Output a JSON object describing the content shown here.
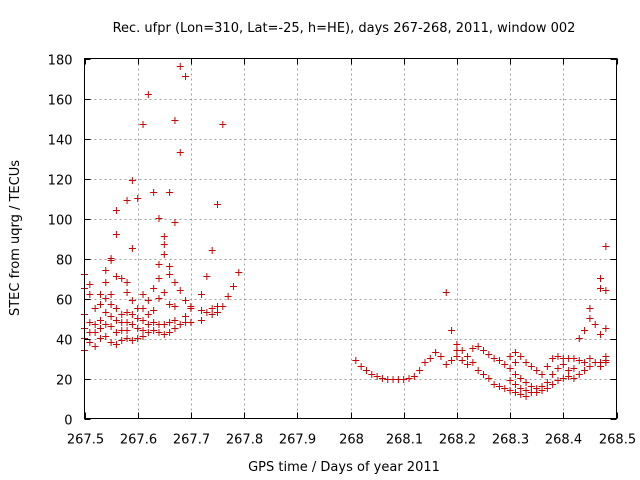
{
  "chart_data": {
    "type": "scatter",
    "title": "Rec. ufpr (Lon=310, Lat=-25, h=HE), days 267-268, 2011, window 002",
    "xlabel": "GPS time / Days of year 2011",
    "ylabel": "STEC from uqrg / TECUs",
    "xlim": [
      267.5,
      268.5
    ],
    "ylim": [
      0,
      180
    ],
    "grid": true,
    "marker": "+",
    "color": "#cc0000",
    "xticks": [
      "267.5",
      "267.6",
      "267.7",
      "267.8",
      "267.9",
      "268",
      "268.1",
      "268.2",
      "268.3",
      "268.4",
      "268.5"
    ],
    "yticks": [
      "0",
      "20",
      "40",
      "60",
      "80",
      "100",
      "120",
      "140",
      "160",
      "180"
    ],
    "points": [
      [
        267.5,
        72
      ],
      [
        267.5,
        65
      ],
      [
        267.5,
        52
      ],
      [
        267.5,
        45
      ],
      [
        267.5,
        40
      ],
      [
        267.5,
        34
      ],
      [
        267.51,
        67
      ],
      [
        267.51,
        62
      ],
      [
        267.51,
        48
      ],
      [
        267.51,
        43
      ],
      [
        267.51,
        38
      ],
      [
        267.52,
        55
      ],
      [
        267.52,
        47
      ],
      [
        267.52,
        43
      ],
      [
        267.52,
        36
      ],
      [
        267.53,
        62
      ],
      [
        267.53,
        57
      ],
      [
        267.53,
        49
      ],
      [
        267.53,
        45
      ],
      [
        267.53,
        40
      ],
      [
        267.54,
        74
      ],
      [
        267.54,
        68
      ],
      [
        267.54,
        60
      ],
      [
        267.54,
        53
      ],
      [
        267.54,
        47
      ],
      [
        267.54,
        41
      ],
      [
        267.55,
        80
      ],
      [
        267.55,
        79
      ],
      [
        267.55,
        62
      ],
      [
        267.55,
        57
      ],
      [
        267.55,
        51
      ],
      [
        267.55,
        46
      ],
      [
        267.55,
        38
      ],
      [
        267.56,
        104
      ],
      [
        267.56,
        92
      ],
      [
        267.56,
        71
      ],
      [
        267.56,
        55
      ],
      [
        267.56,
        49
      ],
      [
        267.56,
        43
      ],
      [
        267.56,
        37
      ],
      [
        267.57,
        70
      ],
      [
        267.57,
        52
      ],
      [
        267.57,
        48
      ],
      [
        267.57,
        44
      ],
      [
        267.57,
        39
      ],
      [
        267.58,
        109
      ],
      [
        267.58,
        68
      ],
      [
        267.58,
        63
      ],
      [
        267.58,
        53
      ],
      [
        267.58,
        48
      ],
      [
        267.58,
        44
      ],
      [
        267.58,
        40
      ],
      [
        267.59,
        119
      ],
      [
        267.59,
        85
      ],
      [
        267.59,
        59
      ],
      [
        267.59,
        52
      ],
      [
        267.59,
        47
      ],
      [
        267.59,
        39
      ],
      [
        267.6,
        110
      ],
      [
        267.6,
        55
      ],
      [
        267.6,
        50
      ],
      [
        267.6,
        45
      ],
      [
        267.6,
        40
      ],
      [
        267.61,
        147
      ],
      [
        267.61,
        62
      ],
      [
        267.61,
        55
      ],
      [
        267.61,
        49
      ],
      [
        267.61,
        44
      ],
      [
        267.61,
        41
      ],
      [
        267.62,
        162
      ],
      [
        267.62,
        59
      ],
      [
        267.62,
        52
      ],
      [
        267.62,
        47
      ],
      [
        267.62,
        43
      ],
      [
        267.63,
        113
      ],
      [
        267.63,
        65
      ],
      [
        267.63,
        54
      ],
      [
        267.63,
        48
      ],
      [
        267.63,
        44
      ],
      [
        267.64,
        100
      ],
      [
        267.64,
        77
      ],
      [
        267.64,
        70
      ],
      [
        267.64,
        60
      ],
      [
        267.64,
        47
      ],
      [
        267.64,
        43
      ],
      [
        267.65,
        91
      ],
      [
        267.65,
        87
      ],
      [
        267.65,
        82
      ],
      [
        267.65,
        63
      ],
      [
        267.65,
        47
      ],
      [
        267.65,
        42
      ],
      [
        267.66,
        113
      ],
      [
        267.66,
        76
      ],
      [
        267.66,
        72
      ],
      [
        267.66,
        57
      ],
      [
        267.66,
        48
      ],
      [
        267.66,
        43
      ],
      [
        267.67,
        149
      ],
      [
        267.67,
        98
      ],
      [
        267.67,
        68
      ],
      [
        267.67,
        56
      ],
      [
        267.67,
        49
      ],
      [
        267.67,
        45
      ],
      [
        267.68,
        176
      ],
      [
        267.68,
        133
      ],
      [
        267.68,
        64
      ],
      [
        267.68,
        47
      ],
      [
        267.69,
        171
      ],
      [
        267.69,
        59
      ],
      [
        267.69,
        51
      ],
      [
        267.69,
        48
      ],
      [
        267.7,
        56
      ],
      [
        267.7,
        55
      ],
      [
        267.7,
        48
      ],
      [
        267.72,
        62
      ],
      [
        267.72,
        54
      ],
      [
        267.72,
        49
      ],
      [
        267.73,
        71
      ],
      [
        267.73,
        53
      ],
      [
        267.74,
        84
      ],
      [
        267.74,
        55
      ],
      [
        267.74,
        52
      ],
      [
        267.75,
        107
      ],
      [
        267.75,
        56
      ],
      [
        267.75,
        53
      ],
      [
        267.76,
        147
      ],
      [
        267.76,
        56
      ],
      [
        267.77,
        61
      ],
      [
        267.78,
        66
      ],
      [
        267.79,
        73
      ],
      [
        268.01,
        29
      ],
      [
        268.02,
        26
      ],
      [
        268.03,
        24
      ],
      [
        268.04,
        22
      ],
      [
        268.05,
        21
      ],
      [
        268.06,
        20
      ],
      [
        268.07,
        19.5
      ],
      [
        268.08,
        19.5
      ],
      [
        268.09,
        19.5
      ],
      [
        268.1,
        19.5
      ],
      [
        268.11,
        20
      ],
      [
        268.12,
        21
      ],
      [
        268.13,
        24
      ],
      [
        268.14,
        28
      ],
      [
        268.15,
        30
      ],
      [
        268.16,
        33
      ],
      [
        268.17,
        31
      ],
      [
        268.18,
        63
      ],
      [
        268.18,
        27
      ],
      [
        268.19,
        44
      ],
      [
        268.19,
        29
      ],
      [
        268.2,
        37
      ],
      [
        268.2,
        34
      ],
      [
        268.2,
        31
      ],
      [
        268.21,
        34
      ],
      [
        268.21,
        29
      ],
      [
        268.22,
        31
      ],
      [
        268.22,
        27
      ],
      [
        268.23,
        35
      ],
      [
        268.23,
        28
      ],
      [
        268.24,
        36
      ],
      [
        268.24,
        24
      ],
      [
        268.25,
        34
      ],
      [
        268.25,
        22
      ],
      [
        268.26,
        32
      ],
      [
        268.26,
        20
      ],
      [
        268.27,
        30
      ],
      [
        268.27,
        17
      ],
      [
        268.28,
        29
      ],
      [
        268.28,
        16
      ],
      [
        268.29,
        27
      ],
      [
        268.29,
        15
      ],
      [
        268.3,
        31
      ],
      [
        268.3,
        25
      ],
      [
        268.3,
        19
      ],
      [
        268.3,
        14
      ],
      [
        268.31,
        33
      ],
      [
        268.31,
        28
      ],
      [
        268.31,
        22
      ],
      [
        268.31,
        17
      ],
      [
        268.31,
        13
      ],
      [
        268.32,
        31
      ],
      [
        268.32,
        20
      ],
      [
        268.32,
        15
      ],
      [
        268.32,
        12
      ],
      [
        268.33,
        28
      ],
      [
        268.33,
        18
      ],
      [
        268.33,
        14
      ],
      [
        268.33,
        11
      ],
      [
        268.34,
        26
      ],
      [
        268.34,
        16
      ],
      [
        268.34,
        13
      ],
      [
        268.35,
        24
      ],
      [
        268.35,
        15
      ],
      [
        268.35,
        13
      ],
      [
        268.36,
        22
      ],
      [
        268.36,
        16
      ],
      [
        268.36,
        14
      ],
      [
        268.37,
        26
      ],
      [
        268.37,
        18
      ],
      [
        268.37,
        15
      ],
      [
        268.38,
        30
      ],
      [
        268.38,
        22
      ],
      [
        268.38,
        17
      ],
      [
        268.39,
        31
      ],
      [
        268.39,
        25
      ],
      [
        268.39,
        19
      ],
      [
        268.4,
        30
      ],
      [
        268.4,
        27
      ],
      [
        268.4,
        20
      ],
      [
        268.41,
        30
      ],
      [
        268.41,
        24
      ],
      [
        268.41,
        21
      ],
      [
        268.42,
        30
      ],
      [
        268.42,
        25
      ],
      [
        268.42,
        20
      ],
      [
        268.43,
        40
      ],
      [
        268.43,
        29
      ],
      [
        268.43,
        22
      ],
      [
        268.44,
        44
      ],
      [
        268.44,
        28
      ],
      [
        268.44,
        24
      ],
      [
        268.45,
        55
      ],
      [
        268.45,
        50
      ],
      [
        268.45,
        30
      ],
      [
        268.45,
        26
      ],
      [
        268.46,
        47
      ],
      [
        268.46,
        28
      ],
      [
        268.47,
        70
      ],
      [
        268.47,
        65
      ],
      [
        268.47,
        42
      ],
      [
        268.47,
        28
      ],
      [
        268.47,
        26
      ],
      [
        268.48,
        86
      ],
      [
        268.48,
        64
      ],
      [
        268.48,
        45
      ],
      [
        268.48,
        31
      ],
      [
        268.48,
        29
      ],
      [
        268.48,
        28
      ]
    ]
  }
}
